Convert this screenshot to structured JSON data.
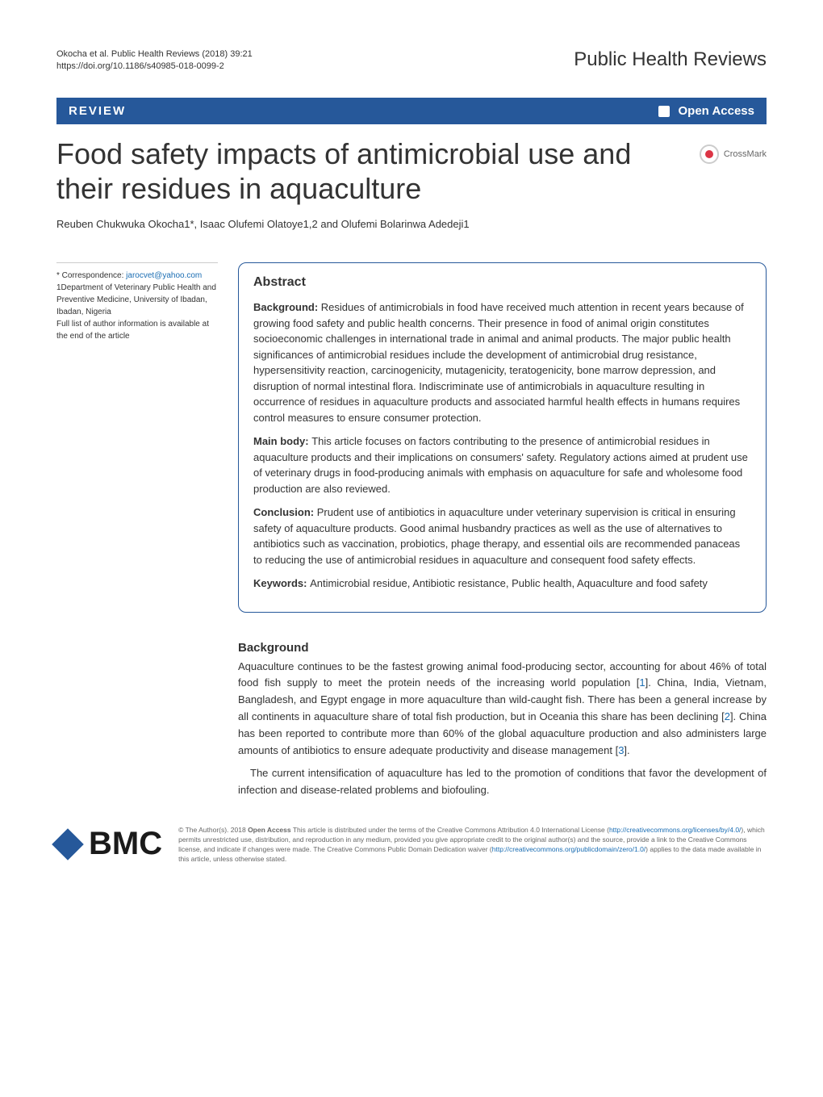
{
  "header": {
    "citation_line1": "Okocha et al. Public Health Reviews  (2018) 39:21",
    "citation_line2": "https://doi.org/10.1186/s40985-018-0099-2",
    "journal_name": "Public Health Reviews"
  },
  "review_bar": {
    "label_left": "REVIEW",
    "label_right": "Open Access"
  },
  "article": {
    "title": "Food safety impacts of antimicrobial use and their residues in aquaculture",
    "crossmark_label": "CrossMark",
    "authors": "Reuben Chukwuka Okocha1*, Isaac Olufemi Olatoye1,2 and Olufemi Bolarinwa Adedeji1"
  },
  "correspondence": {
    "prefix": "* Correspondence: ",
    "email": "jarocvet@yahoo.com",
    "affiliation": "1Department of Veterinary Public Health and Preventive Medicine, University of Ibadan, Ibadan, Nigeria",
    "note": "Full list of author information is available at the end of the article"
  },
  "abstract": {
    "heading": "Abstract",
    "background_label": "Background: ",
    "background_text": "Residues of antimicrobials in food have received much attention in recent years because of growing food safety and public health concerns. Their presence in food of animal origin constitutes socioeconomic challenges in international trade in animal and animal products. The major public health significances of antimicrobial residues include the development of antimicrobial drug resistance, hypersensitivity reaction, carcinogenicity, mutagenicity, teratogenicity, bone marrow depression, and disruption of normal intestinal flora. Indiscriminate use of antimicrobials in aquaculture resulting in occurrence of residues in aquaculture products and associated harmful health effects in humans requires control measures to ensure consumer protection.",
    "mainbody_label": "Main body: ",
    "mainbody_text": "This article focuses on factors contributing to the presence of antimicrobial residues in aquaculture products and their implications on consumers' safety. Regulatory actions aimed at prudent use of veterinary drugs in food-producing animals with emphasis on aquaculture for safe and wholesome food production are also reviewed.",
    "conclusion_label": "Conclusion: ",
    "conclusion_text": "Prudent use of antibiotics in aquaculture under veterinary supervision is critical in ensuring safety of aquaculture products. Good animal husbandry practices as well as the use of alternatives to antibiotics such as vaccination, probiotics, phage therapy, and essential oils are recommended panaceas to reducing the use of antimicrobial residues in aquaculture and consequent food safety effects.",
    "keywords_label": "Keywords: ",
    "keywords_text": "Antimicrobial residue, Antibiotic resistance, Public health, Aquaculture and food safety"
  },
  "body": {
    "background_heading": "Background",
    "para1_part1": "Aquaculture continues to be the fastest growing animal food-producing sector, accounting for about 46% of total food fish supply to meet the protein needs of the increasing world population [",
    "para1_ref1": "1",
    "para1_part2": "]. China, India, Vietnam, Bangladesh, and Egypt engage in more aquaculture than wild-caught fish. There has been a general increase by all continents in aquaculture share of total fish production, but in Oceania this share has been declining [",
    "para1_ref2": "2",
    "para1_part3": "]. China has been reported to contribute more than 60% of the global aquaculture production and also administers large amounts of antibiotics to ensure adequate productivity and disease management [",
    "para1_ref3": "3",
    "para1_part4": "].",
    "para2": "The current intensification of aquaculture has led to the promotion of conditions that favor the development of infection and disease-related problems and biofouling."
  },
  "footer": {
    "bmc_label": "BMC",
    "license_part1": "© The Author(s). 2018 ",
    "license_bold": "Open Access",
    "license_part2": " This article is distributed under the terms of the Creative Commons Attribution 4.0 International License (",
    "license_url1": "http://creativecommons.org/licenses/by/4.0/",
    "license_part3": "), which permits unrestricted use, distribution, and reproduction in any medium, provided you give appropriate credit to the original author(s) and the source, provide a link to the Creative Commons license, and indicate if changes were made. The Creative Commons Public Domain Dedication waiver (",
    "license_url2": "http://creativecommons.org/publicdomain/zero/1.0/",
    "license_part4": ") applies to the data made available in this article, unless otherwise stated."
  }
}
